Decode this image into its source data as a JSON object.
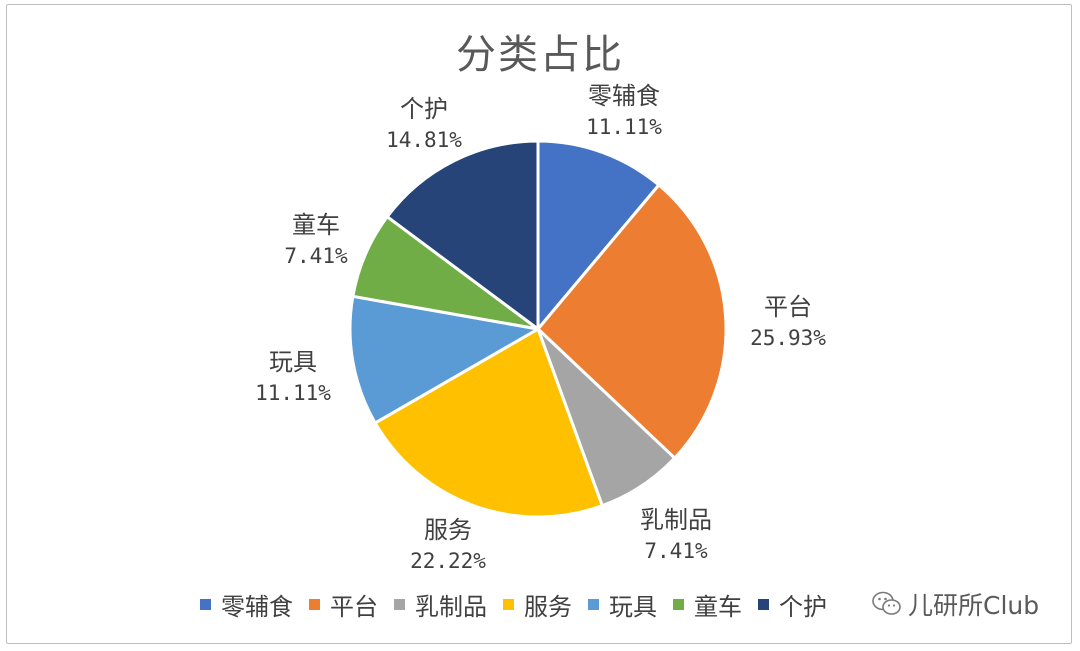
{
  "chart_data": {
    "type": "pie",
    "title": "分类占比",
    "slices": [
      {
        "label": "零辅食",
        "value": 11.11,
        "display": "11.11%",
        "color": "#4472C4"
      },
      {
        "label": "平台",
        "value": 25.93,
        "display": "25.93%",
        "color": "#ED7D31"
      },
      {
        "label": "乳制品",
        "value": 7.41,
        "display": "7.41%",
        "color": "#A5A5A5"
      },
      {
        "label": "服务",
        "value": 22.22,
        "display": "22.22%",
        "color": "#FFC000"
      },
      {
        "label": "玩具",
        "value": 11.11,
        "display": "11.11%",
        "color": "#5B9BD5"
      },
      {
        "label": "童车",
        "value": 7.41,
        "display": "7.41%",
        "color": "#70AD47"
      },
      {
        "label": "个护",
        "value": 14.81,
        "display": "14.81%",
        "color": "#264478"
      }
    ],
    "legend_position": "bottom"
  },
  "legend": {
    "items": [
      {
        "label": "零辅食",
        "color": "#4472C4"
      },
      {
        "label": "平台",
        "color": "#ED7D31"
      },
      {
        "label": "乳制品",
        "color": "#A5A5A5"
      },
      {
        "label": "服务",
        "color": "#FFC000"
      },
      {
        "label": "玩具",
        "color": "#5B9BD5"
      },
      {
        "label": "童车",
        "color": "#70AD47"
      },
      {
        "label": "个护",
        "color": "#264478"
      }
    ]
  },
  "watermark": {
    "text": "儿研所Club",
    "icon": "wechat-icon"
  }
}
